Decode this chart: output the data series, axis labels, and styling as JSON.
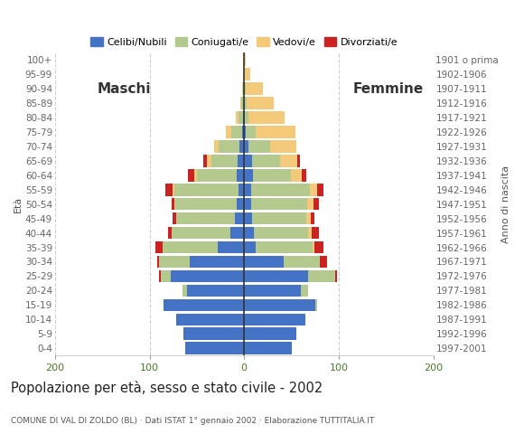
{
  "age_groups": [
    "0-4",
    "5-9",
    "10-14",
    "15-19",
    "20-24",
    "25-29",
    "30-34",
    "35-39",
    "40-44",
    "45-49",
    "50-54",
    "55-59",
    "60-64",
    "65-69",
    "70-74",
    "75-79",
    "80-84",
    "85-89",
    "90-94",
    "95-99",
    "100+"
  ],
  "birth_years": [
    "1997-2001",
    "1992-1996",
    "1987-1991",
    "1982-1986",
    "1977-1981",
    "1972-1976",
    "1967-1971",
    "1962-1966",
    "1957-1961",
    "1952-1956",
    "1947-1951",
    "1942-1946",
    "1937-1941",
    "1932-1936",
    "1927-1931",
    "1922-1926",
    "1917-1921",
    "1912-1916",
    "1907-1911",
    "1902-1906",
    "1901 o prima"
  ],
  "males": {
    "celibe": [
      62,
      64,
      72,
      85,
      60,
      78,
      58,
      28,
      15,
      10,
      8,
      6,
      8,
      7,
      5,
      2,
      1,
      0,
      0,
      0,
      0
    ],
    "coniugato": [
      0,
      0,
      0,
      0,
      5,
      10,
      32,
      58,
      62,
      62,
      65,
      68,
      42,
      28,
      22,
      12,
      5,
      3,
      1,
      0,
      0
    ],
    "vedovo": [
      0,
      0,
      0,
      0,
      0,
      0,
      0,
      0,
      0,
      0,
      1,
      2,
      3,
      4,
      5,
      5,
      3,
      1,
      1,
      0,
      0
    ],
    "divorziato": [
      0,
      0,
      0,
      0,
      0,
      2,
      2,
      8,
      3,
      4,
      3,
      7,
      6,
      4,
      0,
      0,
      0,
      0,
      0,
      0,
      0
    ]
  },
  "females": {
    "celibe": [
      50,
      55,
      65,
      75,
      60,
      68,
      42,
      12,
      10,
      8,
      7,
      7,
      9,
      8,
      5,
      2,
      1,
      1,
      1,
      0,
      0
    ],
    "coniugato": [
      0,
      0,
      0,
      2,
      8,
      28,
      38,
      60,
      58,
      58,
      60,
      62,
      40,
      30,
      22,
      10,
      4,
      2,
      1,
      0,
      0
    ],
    "vedovo": [
      0,
      0,
      0,
      0,
      0,
      0,
      0,
      2,
      3,
      4,
      6,
      8,
      12,
      18,
      28,
      42,
      38,
      28,
      18,
      6,
      2
    ],
    "divorziato": [
      0,
      0,
      0,
      0,
      0,
      2,
      8,
      10,
      8,
      4,
      6,
      7,
      5,
      3,
      0,
      0,
      0,
      0,
      0,
      0,
      0
    ]
  },
  "colors": {
    "celibe": "#4472c4",
    "coniugato": "#b3c98d",
    "vedovo": "#f5c97a",
    "divorziato": "#cc2222"
  },
  "title": "Popolazione per età, sesso e stato civile - 2002",
  "subtitle": "COMUNE DI VAL DI ZOLDO (BL) · Dati ISTAT 1° gennaio 2002 · Elaborazione TUTTITALIA.IT",
  "xlabel_left": "Maschi",
  "xlabel_right": "Femmine",
  "ylabel": "Età",
  "ylabel_right": "Anno di nascita",
  "xlim": 200,
  "legend_labels": [
    "Celibi/Nubili",
    "Coniugati/e",
    "Vedovi/e",
    "Divorziati/e"
  ],
  "bg_color": "#ffffff",
  "grid_color": "#cccccc"
}
